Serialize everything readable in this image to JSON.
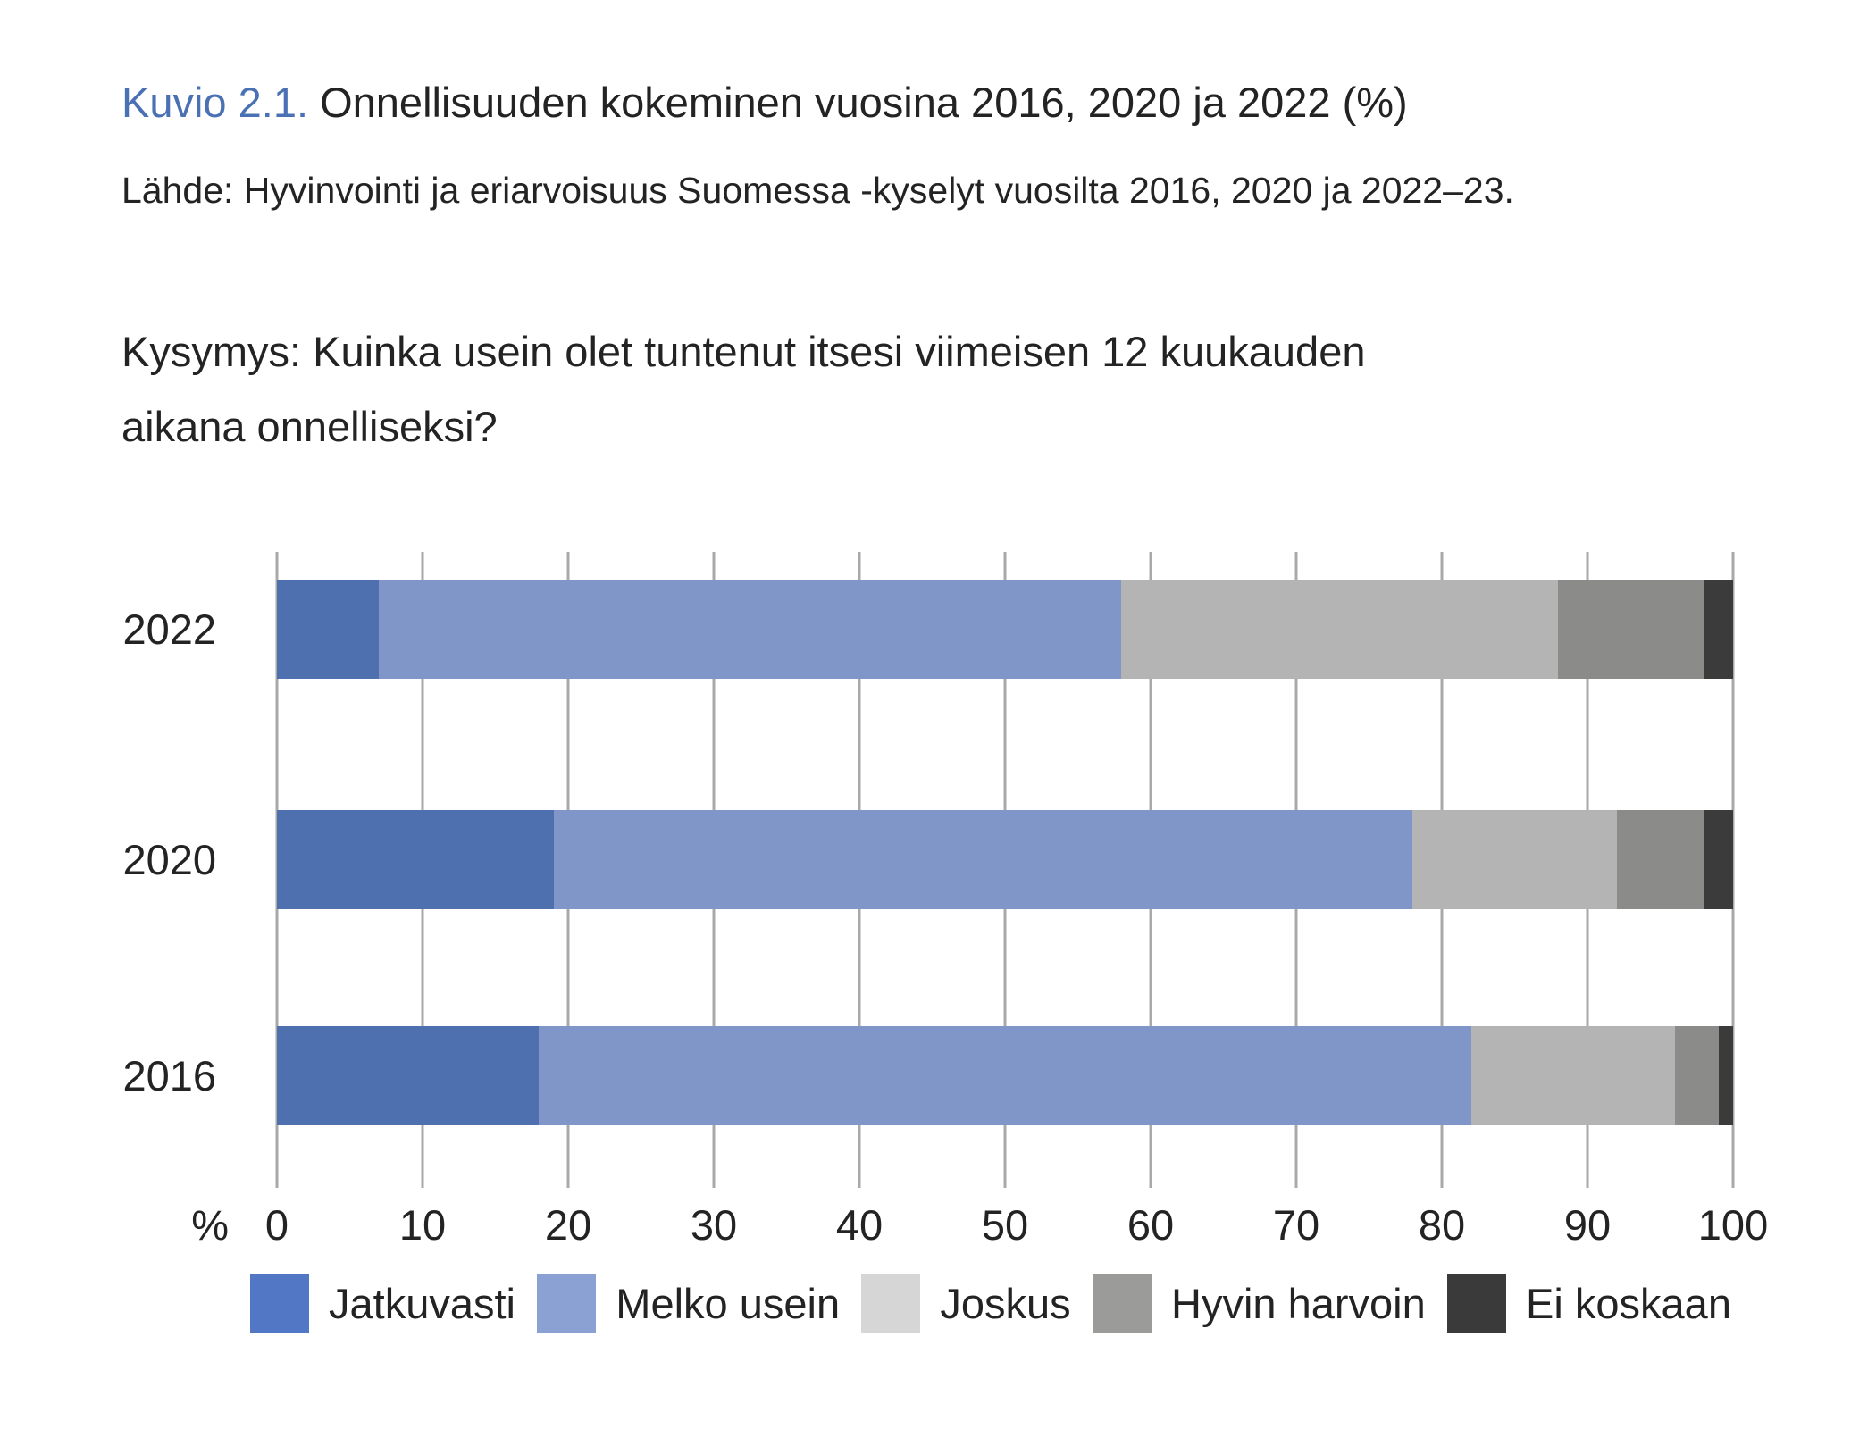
{
  "figure": {
    "label": "Kuvio 2.1.",
    "title": "Onnellisuuden kokeminen vuosina 2016, 2020 ja 2022 (%)",
    "source": "Lähde: Hyvinvointi ja eriarvoisuus Suomessa -kyselyt vuosilta 2016, 2020 ja 2022–23.",
    "question": "Kysymys: Kuinka usein olet tuntenut itsesi viimeisen 12 kuukauden aikana onnelliseksi?",
    "label_color": "#4a71b4",
    "text_color": "#232323"
  },
  "chart_data": {
    "type": "bar",
    "orientation": "horizontal",
    "stacked": true,
    "grid": true,
    "gridline_color": "#a9a9a9",
    "legend_position": "bottom",
    "categories": [
      "2022",
      "2020",
      "2016"
    ],
    "series": [
      {
        "name": "Jatkuvasti",
        "color": "#4f70ae",
        "legend_color": "#5277c4",
        "values": [
          7,
          19,
          18
        ]
      },
      {
        "name": "Melko usein",
        "color": "#8095c8",
        "legend_color": "#8ba0d3",
        "values": [
          51,
          59,
          64
        ]
      },
      {
        "name": "Joskus",
        "color": "#b4b4b4",
        "legend_color": "#d6d6d6",
        "values": [
          30,
          14,
          14
        ]
      },
      {
        "name": "Hyvin harvoin",
        "color": "#8b8b89",
        "legend_color": "#9b9b99",
        "values": [
          10,
          6,
          3
        ]
      },
      {
        "name": "Ei koskaan",
        "color": "#3b3b3b",
        "legend_color": "#3a3a3a",
        "values": [
          2,
          2,
          1
        ]
      }
    ],
    "x_axis": {
      "unit_label": "%",
      "min": 0,
      "max": 100,
      "tick_step": 10,
      "ticks": [
        0,
        10,
        20,
        30,
        40,
        50,
        60,
        70,
        80,
        90,
        100
      ]
    }
  }
}
